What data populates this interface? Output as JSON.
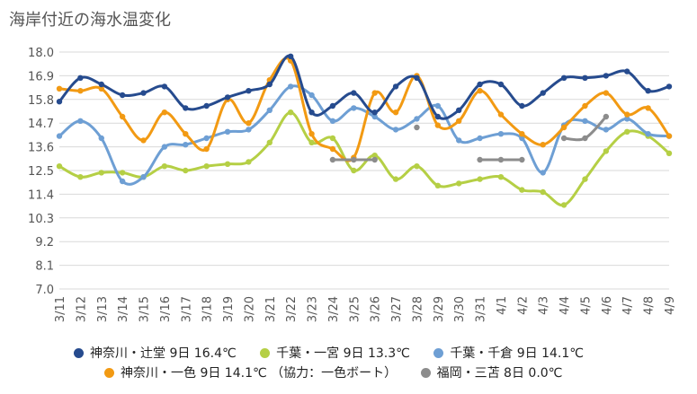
{
  "chart_data": {
    "type": "line",
    "title": "海岸付近の海水温変化",
    "x": [
      "3/11",
      "3/12",
      "3/13",
      "3/14",
      "3/15",
      "3/16",
      "3/17",
      "3/18",
      "3/19",
      "3/20",
      "3/21",
      "3/22",
      "3/23",
      "3/24",
      "3/25",
      "3/26",
      "3/27",
      "3/28",
      "3/29",
      "3/30",
      "3/31",
      "4/1",
      "4/2",
      "4/3",
      "4/4",
      "4/5",
      "4/6",
      "4/7",
      "4/8",
      "4/9"
    ],
    "ylim": [
      7.0,
      18.0
    ],
    "yticks": [
      "18.0",
      "16.9",
      "15.8",
      "14.7",
      "13.6",
      "12.5",
      "11.4",
      "10.3",
      "9.2",
      "8.1",
      "7.0"
    ],
    "grid": true,
    "legend_position": "bottom",
    "series": [
      {
        "name": "神奈川・辻堂 9日 16.4℃",
        "color": "#264b8e",
        "values": [
          15.7,
          16.8,
          16.5,
          16.0,
          16.1,
          16.4,
          15.4,
          15.5,
          15.9,
          16.2,
          16.5,
          17.8,
          15.2,
          15.5,
          16.1,
          15.2,
          16.4,
          16.8,
          15.0,
          15.3,
          16.5,
          16.5,
          15.5,
          16.1,
          16.8,
          16.8,
          16.9,
          17.1,
          16.2,
          16.4
        ]
      },
      {
        "name": "千葉・一宮 9日 13.3℃",
        "color": "#b5cf45",
        "values": [
          12.7,
          12.2,
          12.4,
          12.4,
          12.2,
          12.7,
          12.5,
          12.7,
          12.8,
          12.9,
          13.8,
          15.2,
          13.8,
          14.0,
          12.5,
          13.2,
          12.1,
          12.7,
          11.8,
          11.9,
          12.1,
          12.2,
          11.6,
          11.5,
          10.9,
          12.1,
          13.4,
          14.3,
          14.1,
          13.3
        ]
      },
      {
        "name": "千葉・千倉 9日 14.1℃",
        "color": "#6e9fd4",
        "values": [
          14.1,
          14.8,
          14.0,
          12.0,
          12.2,
          13.6,
          13.7,
          14.0,
          14.3,
          14.4,
          15.3,
          16.4,
          16.0,
          14.8,
          15.4,
          15.0,
          14.4,
          14.9,
          15.5,
          13.9,
          14.0,
          14.2,
          14.0,
          12.4,
          14.6,
          14.8,
          14.4,
          14.9,
          14.2,
          14.1
        ]
      },
      {
        "name": "神奈川・一色 9日 14.1℃ （協力：一色ボート）",
        "color": "#f29a13",
        "values": [
          16.3,
          16.2,
          16.3,
          15.0,
          13.9,
          15.2,
          14.2,
          13.5,
          15.8,
          14.7,
          16.7,
          17.6,
          14.2,
          13.5,
          13.1,
          16.1,
          15.2,
          16.9,
          14.6,
          14.8,
          16.2,
          15.1,
          14.2,
          13.7,
          14.5,
          15.5,
          16.1,
          15.1,
          15.4,
          14.1
        ]
      },
      {
        "name": "福岡・三苫 8日 0.0℃",
        "color": "#8c8c8c",
        "values": [
          null,
          null,
          null,
          null,
          null,
          null,
          null,
          null,
          null,
          null,
          null,
          null,
          null,
          13.0,
          13.0,
          13.0,
          null,
          14.5,
          null,
          null,
          13.0,
          13.0,
          13.0,
          null,
          14.0,
          14.0,
          15.0,
          null,
          null,
          null
        ]
      }
    ]
  }
}
